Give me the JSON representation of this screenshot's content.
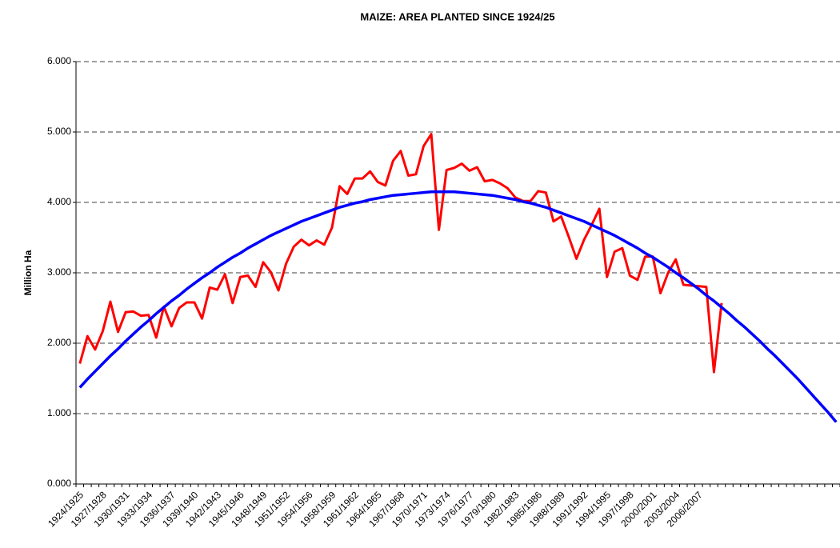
{
  "chart_data": {
    "type": "line",
    "title": "MAIZE:  AREA PLANTED SINCE 1924/25",
    "y_label": "Million Ha",
    "categories": [
      "1924/1925",
      null,
      null,
      "1927/1928",
      null,
      null,
      "1930/1931",
      null,
      null,
      "1933/1934",
      null,
      null,
      "1936/1937",
      null,
      null,
      "1939/1940",
      null,
      null,
      "1942/1943",
      null,
      null,
      "1945/1946",
      null,
      null,
      "1948/1949",
      null,
      null,
      "1951/1952",
      null,
      null,
      "1954/1956",
      null,
      null,
      "1958/1959",
      null,
      null,
      "1961/1962",
      null,
      null,
      "1964/1965",
      null,
      null,
      "1967/1968",
      null,
      null,
      "1970/1971",
      null,
      null,
      "1973/1974",
      null,
      null,
      "1976/1977",
      null,
      null,
      "1979/1980",
      null,
      null,
      "1982/1983",
      null,
      null,
      "1985/1986",
      null,
      null,
      "1988/1989",
      null,
      null,
      "1991/1992",
      null,
      null,
      "1994/1995",
      null,
      null,
      "1997/1998",
      null,
      null,
      "2000/2001",
      null,
      null,
      "2003/2004",
      null,
      null,
      "2006/2007",
      null,
      null,
      null,
      null,
      null,
      null,
      null,
      null,
      null,
      null,
      null,
      null,
      null,
      null,
      null,
      null,
      null,
      null
    ],
    "series": [
      {
        "color": "#ff0000",
        "values": [
          1.71,
          2.1,
          1.91,
          2.17,
          2.59,
          2.16,
          2.44,
          2.45,
          2.39,
          2.4,
          2.08,
          2.52,
          2.24,
          2.5,
          2.58,
          2.58,
          2.35,
          2.79,
          2.76,
          2.98,
          2.57,
          2.94,
          2.96,
          2.8,
          3.15,
          3.01,
          2.75,
          3.13,
          3.37,
          3.47,
          3.39,
          3.46,
          3.4,
          3.64,
          4.23,
          4.12,
          4.34,
          4.34,
          4.44,
          4.29,
          4.24,
          4.59,
          4.73,
          4.38,
          4.4,
          4.8,
          4.97,
          3.61,
          4.46,
          4.49,
          4.55,
          4.45,
          4.5,
          4.3,
          4.32,
          4.27,
          4.2,
          4.07,
          4.02,
          4.02,
          4.16,
          4.14,
          3.73,
          3.8,
          3.51,
          3.2,
          3.47,
          3.68,
          3.91,
          2.94,
          3.3,
          3.35,
          2.96,
          2.9,
          3.23,
          3.23,
          2.71,
          3.0,
          3.19,
          2.83,
          2.82,
          2.81,
          2.8,
          1.59,
          2.57,
          null,
          null,
          null,
          null,
          null,
          null,
          null,
          null,
          null,
          null,
          null,
          null,
          null,
          null,
          null
        ]
      },
      {
        "color": "#0000ff",
        "values": [
          1.37,
          1.49,
          1.6,
          1.71,
          1.82,
          1.92,
          2.03,
          2.13,
          2.23,
          2.32,
          2.42,
          2.51,
          2.6,
          2.68,
          2.77,
          2.85,
          2.93,
          3.0,
          3.08,
          3.15,
          3.22,
          3.28,
          3.35,
          3.41,
          3.47,
          3.53,
          3.58,
          3.63,
          3.68,
          3.73,
          3.77,
          3.81,
          3.85,
          3.89,
          3.93,
          3.96,
          3.99,
          4.01,
          4.04,
          4.06,
          4.08,
          4.1,
          4.11,
          4.12,
          4.13,
          4.14,
          4.15,
          4.15,
          4.15,
          4.15,
          4.14,
          4.13,
          4.12,
          4.11,
          4.1,
          4.08,
          4.06,
          4.04,
          4.01,
          3.99,
          3.96,
          3.93,
          3.89,
          3.85,
          3.81,
          3.77,
          3.73,
          3.68,
          3.63,
          3.58,
          3.53,
          3.47,
          3.41,
          3.35,
          3.28,
          3.22,
          3.15,
          3.08,
          3.0,
          2.93,
          2.85,
          2.77,
          2.68,
          2.6,
          2.51,
          2.42,
          2.32,
          2.23,
          2.13,
          2.03,
          1.92,
          1.82,
          1.71,
          1.6,
          1.49,
          1.37,
          1.25,
          1.13,
          1.01,
          0.88
        ]
      }
    ],
    "ylim": [
      0,
      6
    ],
    "yticks": [
      {
        "value": 0,
        "label": "0.000"
      },
      {
        "value": 1,
        "label": "1.000"
      },
      {
        "value": 2,
        "label": "2.000"
      },
      {
        "value": 3,
        "label": "3.000"
      },
      {
        "value": 4,
        "label": "4.000"
      },
      {
        "value": 5,
        "label": "5.000"
      },
      {
        "value": 6,
        "label": "6.000"
      }
    ],
    "grid": true
  }
}
